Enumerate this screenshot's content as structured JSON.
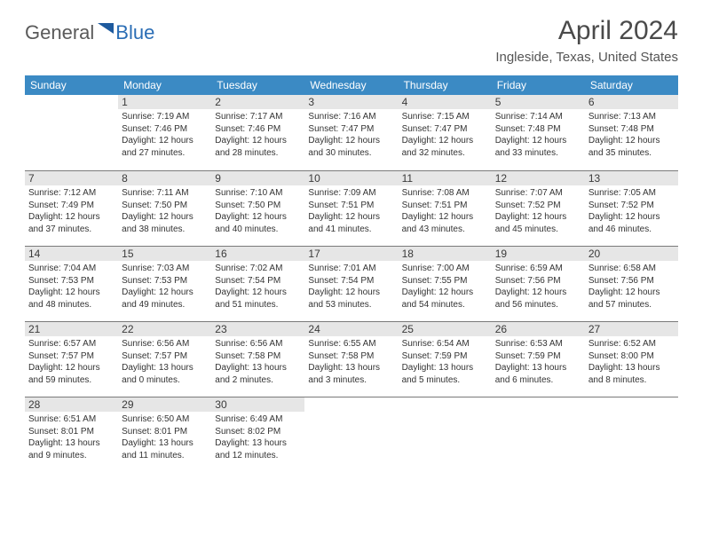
{
  "logo": {
    "part1": "General",
    "part2": "Blue"
  },
  "title": "April 2024",
  "location": "Ingleside, Texas, United States",
  "weekdays": [
    "Sunday",
    "Monday",
    "Tuesday",
    "Wednesday",
    "Thursday",
    "Friday",
    "Saturday"
  ],
  "colors": {
    "header_blue": "#3b8ac4",
    "daynum_bg": "#e6e6e6",
    "border": "#7a7a7a",
    "logo_blue": "#2a6db5"
  },
  "days": [
    {
      "n": "1",
      "sr": "7:19 AM",
      "ss": "7:46 PM",
      "dl": "12 hours and 27 minutes."
    },
    {
      "n": "2",
      "sr": "7:17 AM",
      "ss": "7:46 PM",
      "dl": "12 hours and 28 minutes."
    },
    {
      "n": "3",
      "sr": "7:16 AM",
      "ss": "7:47 PM",
      "dl": "12 hours and 30 minutes."
    },
    {
      "n": "4",
      "sr": "7:15 AM",
      "ss": "7:47 PM",
      "dl": "12 hours and 32 minutes."
    },
    {
      "n": "5",
      "sr": "7:14 AM",
      "ss": "7:48 PM",
      "dl": "12 hours and 33 minutes."
    },
    {
      "n": "6",
      "sr": "7:13 AM",
      "ss": "7:48 PM",
      "dl": "12 hours and 35 minutes."
    },
    {
      "n": "7",
      "sr": "7:12 AM",
      "ss": "7:49 PM",
      "dl": "12 hours and 37 minutes."
    },
    {
      "n": "8",
      "sr": "7:11 AM",
      "ss": "7:50 PM",
      "dl": "12 hours and 38 minutes."
    },
    {
      "n": "9",
      "sr": "7:10 AM",
      "ss": "7:50 PM",
      "dl": "12 hours and 40 minutes."
    },
    {
      "n": "10",
      "sr": "7:09 AM",
      "ss": "7:51 PM",
      "dl": "12 hours and 41 minutes."
    },
    {
      "n": "11",
      "sr": "7:08 AM",
      "ss": "7:51 PM",
      "dl": "12 hours and 43 minutes."
    },
    {
      "n": "12",
      "sr": "7:07 AM",
      "ss": "7:52 PM",
      "dl": "12 hours and 45 minutes."
    },
    {
      "n": "13",
      "sr": "7:05 AM",
      "ss": "7:52 PM",
      "dl": "12 hours and 46 minutes."
    },
    {
      "n": "14",
      "sr": "7:04 AM",
      "ss": "7:53 PM",
      "dl": "12 hours and 48 minutes."
    },
    {
      "n": "15",
      "sr": "7:03 AM",
      "ss": "7:53 PM",
      "dl": "12 hours and 49 minutes."
    },
    {
      "n": "16",
      "sr": "7:02 AM",
      "ss": "7:54 PM",
      "dl": "12 hours and 51 minutes."
    },
    {
      "n": "17",
      "sr": "7:01 AM",
      "ss": "7:54 PM",
      "dl": "12 hours and 53 minutes."
    },
    {
      "n": "18",
      "sr": "7:00 AM",
      "ss": "7:55 PM",
      "dl": "12 hours and 54 minutes."
    },
    {
      "n": "19",
      "sr": "6:59 AM",
      "ss": "7:56 PM",
      "dl": "12 hours and 56 minutes."
    },
    {
      "n": "20",
      "sr": "6:58 AM",
      "ss": "7:56 PM",
      "dl": "12 hours and 57 minutes."
    },
    {
      "n": "21",
      "sr": "6:57 AM",
      "ss": "7:57 PM",
      "dl": "12 hours and 59 minutes."
    },
    {
      "n": "22",
      "sr": "6:56 AM",
      "ss": "7:57 PM",
      "dl": "13 hours and 0 minutes."
    },
    {
      "n": "23",
      "sr": "6:56 AM",
      "ss": "7:58 PM",
      "dl": "13 hours and 2 minutes."
    },
    {
      "n": "24",
      "sr": "6:55 AM",
      "ss": "7:58 PM",
      "dl": "13 hours and 3 minutes."
    },
    {
      "n": "25",
      "sr": "6:54 AM",
      "ss": "7:59 PM",
      "dl": "13 hours and 5 minutes."
    },
    {
      "n": "26",
      "sr": "6:53 AM",
      "ss": "7:59 PM",
      "dl": "13 hours and 6 minutes."
    },
    {
      "n": "27",
      "sr": "6:52 AM",
      "ss": "8:00 PM",
      "dl": "13 hours and 8 minutes."
    },
    {
      "n": "28",
      "sr": "6:51 AM",
      "ss": "8:01 PM",
      "dl": "13 hours and 9 minutes."
    },
    {
      "n": "29",
      "sr": "6:50 AM",
      "ss": "8:01 PM",
      "dl": "13 hours and 11 minutes."
    },
    {
      "n": "30",
      "sr": "6:49 AM",
      "ss": "8:02 PM",
      "dl": "13 hours and 12 minutes."
    }
  ],
  "labels": {
    "sunrise": "Sunrise: ",
    "sunset": "Sunset: ",
    "daylight": "Daylight: "
  },
  "start_offset": 1
}
